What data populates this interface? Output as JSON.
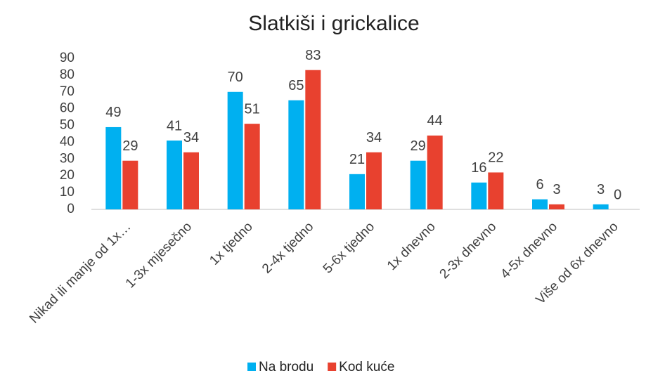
{
  "chart_data": {
    "type": "bar",
    "title": "Slatkiši i grickalice",
    "categories": [
      "Nikad ili manje od 1x…",
      "1-3x mjesečno",
      "1x tjedno",
      "2-4x tjedno",
      "5-6x tjedno",
      "1x dnevno",
      "2-3x dnevno",
      "4-5x dnevno",
      "Više od 6x dnevno"
    ],
    "series": [
      {
        "name": "Na brodu",
        "color": "#00b0f0",
        "values": [
          49,
          41,
          70,
          65,
          21,
          29,
          16,
          6,
          3
        ]
      },
      {
        "name": "Kod kuće",
        "color": "#e8412f",
        "values": [
          29,
          34,
          51,
          83,
          34,
          44,
          22,
          3,
          0
        ]
      }
    ],
    "ylim": [
      0,
      90
    ],
    "yticks": [
      0,
      10,
      20,
      30,
      40,
      50,
      60,
      70,
      80,
      90
    ],
    "grid": false,
    "legend": "bottom"
  }
}
